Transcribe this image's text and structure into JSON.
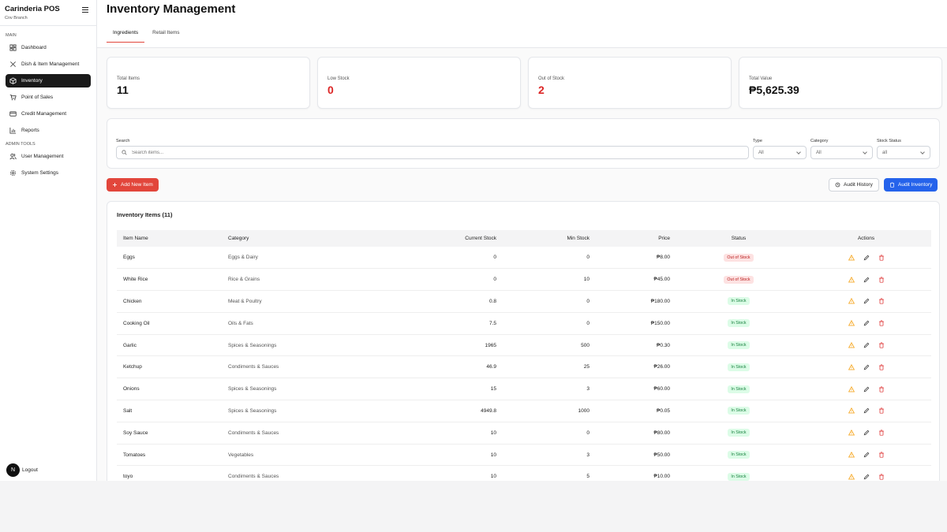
{
  "brand": {
    "title": "Carinderia POS",
    "subtitle": "Cnv Branch"
  },
  "sidebar": {
    "main_label": "MAIN",
    "main_items": [
      {
        "label": "Dashboard",
        "icon": "dashboard-icon",
        "active": false
      },
      {
        "label": "Dish & Item Management",
        "icon": "utensils-icon",
        "active": false
      },
      {
        "label": "Inventory",
        "icon": "box-icon",
        "active": true
      },
      {
        "label": "Point of Sales",
        "icon": "cart-icon",
        "active": false
      },
      {
        "label": "Credit Management",
        "icon": "credit-card-icon",
        "active": false
      },
      {
        "label": "Reports",
        "icon": "bar-chart-icon",
        "active": false
      }
    ],
    "admin_label": "ADMIN TOOLS",
    "admin_items": [
      {
        "label": "User Management",
        "icon": "users-icon"
      },
      {
        "label": "System Settings",
        "icon": "gear-icon"
      }
    ],
    "logout_label": "Logout",
    "avatar_letter": "N"
  },
  "header": {
    "title": "Inventory Management",
    "tabs": [
      {
        "label": "Ingredients",
        "active": true
      },
      {
        "label": "Retail Items",
        "active": false
      }
    ]
  },
  "stats": [
    {
      "label": "Total Items",
      "value": "11",
      "color": "#111111"
    },
    {
      "label": "Low Stock",
      "value": "0",
      "color": "#dc2626"
    },
    {
      "label": "Out of Stock",
      "value": "2",
      "color": "#dc2626"
    },
    {
      "label": "Total Value",
      "value": "₱5,625.39",
      "color": "#111111"
    }
  ],
  "filters": {
    "search_label": "Search",
    "search_placeholder": "Search items...",
    "type_label": "Type",
    "type_value": "All",
    "category_label": "Category",
    "category_value": "All",
    "status_label": "Stock Status",
    "status_value": "all"
  },
  "buttons": {
    "add": "Add New Item",
    "audit_history": "Audit History",
    "audit_inventory": "Audit Inventory"
  },
  "table": {
    "title": "Inventory Items (11)",
    "columns": [
      "Item Name",
      "Category",
      "Current Stock",
      "Min Stock",
      "Price",
      "Status",
      "Actions"
    ],
    "rows": [
      {
        "name": "Eggs",
        "category": "Eggs & Dairy",
        "stock": "0",
        "min": "0",
        "price": "₱8.00",
        "status": "Out of Stock",
        "status_type": "out"
      },
      {
        "name": "White Rice",
        "category": "Rice & Grains",
        "stock": "0",
        "min": "10",
        "price": "₱45.00",
        "status": "Out of Stock",
        "status_type": "out"
      },
      {
        "name": "Chicken",
        "category": "Meat & Poultry",
        "stock": "0.8",
        "min": "0",
        "price": "₱180.00",
        "status": "In Stock",
        "status_type": "in"
      },
      {
        "name": "Cooking Oil",
        "category": "Oils & Fats",
        "stock": "7.5",
        "min": "0",
        "price": "₱150.00",
        "status": "In Stock",
        "status_type": "in"
      },
      {
        "name": "Garlic",
        "category": "Spices & Seasonings",
        "stock": "1965",
        "min": "500",
        "price": "₱0.30",
        "status": "In Stock",
        "status_type": "in"
      },
      {
        "name": "Ketchup",
        "category": "Condiments & Sauces",
        "stock": "46.9",
        "min": "25",
        "price": "₱26.00",
        "status": "In Stock",
        "status_type": "in"
      },
      {
        "name": "Onions",
        "category": "Spices & Seasonings",
        "stock": "15",
        "min": "3",
        "price": "₱60.00",
        "status": "In Stock",
        "status_type": "in"
      },
      {
        "name": "Salt",
        "category": "Spices & Seasonings",
        "stock": "4949.8",
        "min": "1000",
        "price": "₱0.05",
        "status": "In Stock",
        "status_type": "in"
      },
      {
        "name": "Soy Sauce",
        "category": "Condiments & Sauces",
        "stock": "10",
        "min": "0",
        "price": "₱80.00",
        "status": "In Stock",
        "status_type": "in"
      },
      {
        "name": "Tomatoes",
        "category": "Vegetables",
        "stock": "10",
        "min": "3",
        "price": "₱50.00",
        "status": "In Stock",
        "status_type": "in"
      },
      {
        "name": "toyo",
        "category": "Condiments & Sauces",
        "stock": "10",
        "min": "5",
        "price": "₱10.00",
        "status": "In Stock",
        "status_type": "in"
      }
    ]
  }
}
